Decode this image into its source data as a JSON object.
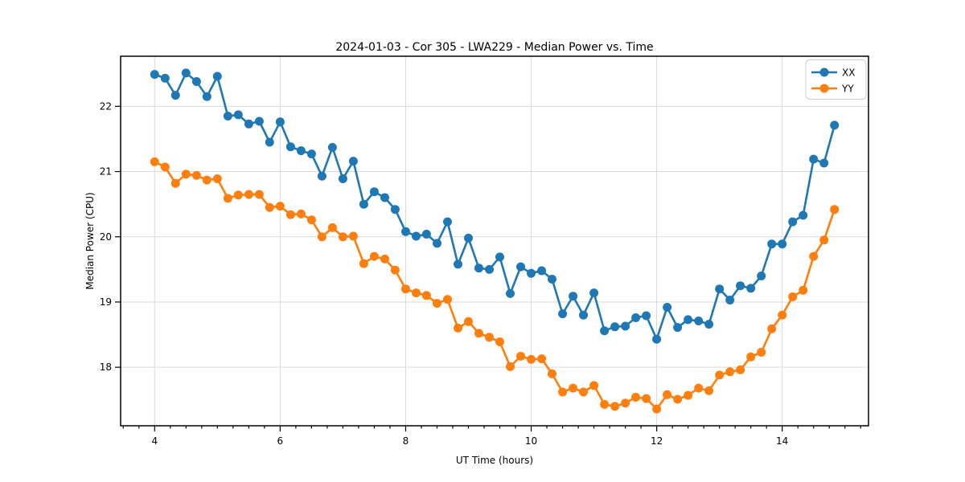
{
  "chart_data": {
    "type": "line",
    "title": "2024-01-03 - Cor 305 - LWA229 - Median Power vs. Time",
    "xlabel": "UT Time (hours)",
    "ylabel": "Median Power (CPU)",
    "xlim": [
      3.458,
      15.375
    ],
    "ylim": [
      17.103,
      22.768
    ],
    "x_ticks": [
      4,
      6,
      8,
      10,
      12,
      14
    ],
    "y_ticks": [
      18,
      19,
      20,
      21,
      22
    ],
    "x_minor_tick_step": 0.25,
    "grid": true,
    "legend_position": "upper right",
    "x": [
      4.0,
      4.167,
      4.333,
      4.5,
      4.667,
      4.833,
      5.0,
      5.167,
      5.333,
      5.5,
      5.667,
      5.833,
      6.0,
      6.167,
      6.333,
      6.5,
      6.667,
      6.833,
      7.0,
      7.167,
      7.333,
      7.5,
      7.667,
      7.833,
      8.0,
      8.167,
      8.333,
      8.5,
      8.667,
      8.833,
      9.0,
      9.167,
      9.333,
      9.5,
      9.667,
      9.833,
      10.0,
      10.167,
      10.333,
      10.5,
      10.667,
      10.833,
      11.0,
      11.167,
      11.333,
      11.5,
      11.667,
      11.833,
      12.0,
      12.167,
      12.333,
      12.5,
      12.667,
      12.833,
      13.0,
      13.167,
      13.333,
      13.5,
      13.667,
      13.833,
      14.0,
      14.167,
      14.333,
      14.5,
      14.667,
      14.833
    ],
    "series": [
      {
        "name": "XX",
        "color": "#1f77b4",
        "values": [
          22.49,
          22.43,
          22.17,
          22.51,
          22.38,
          22.15,
          22.46,
          21.85,
          21.87,
          21.73,
          21.77,
          21.45,
          21.76,
          21.38,
          21.32,
          21.27,
          20.93,
          21.37,
          20.89,
          21.16,
          20.5,
          20.69,
          20.6,
          20.42,
          20.08,
          20.01,
          20.04,
          19.9,
          20.23,
          19.58,
          19.98,
          19.52,
          19.5,
          19.69,
          19.13,
          19.54,
          19.44,
          19.48,
          19.35,
          18.82,
          19.09,
          18.8,
          19.14,
          18.56,
          18.62,
          18.63,
          18.76,
          18.79,
          18.43,
          18.92,
          18.61,
          18.73,
          18.71,
          18.66,
          19.2,
          19.03,
          19.25,
          19.21,
          19.4,
          19.89,
          19.89,
          20.23,
          20.33,
          21.19,
          21.13,
          21.71
        ]
      },
      {
        "name": "YY",
        "color": "#ff7f0e",
        "values": [
          21.15,
          21.07,
          20.82,
          20.96,
          20.94,
          20.87,
          20.89,
          20.59,
          20.64,
          20.65,
          20.65,
          20.45,
          20.47,
          20.34,
          20.35,
          20.26,
          20.0,
          20.14,
          20.0,
          20.01,
          19.59,
          19.7,
          19.66,
          19.49,
          19.2,
          19.14,
          19.1,
          18.98,
          19.04,
          18.6,
          18.7,
          18.52,
          18.46,
          18.39,
          18.01,
          18.17,
          18.12,
          18.13,
          17.9,
          17.62,
          17.68,
          17.62,
          17.72,
          17.43,
          17.4,
          17.45,
          17.54,
          17.52,
          17.36,
          17.58,
          17.51,
          17.57,
          17.68,
          17.64,
          17.88,
          17.93,
          17.96,
          18.16,
          18.23,
          18.59,
          18.8,
          19.08,
          19.18,
          19.7,
          19.95,
          20.42
        ]
      }
    ]
  }
}
